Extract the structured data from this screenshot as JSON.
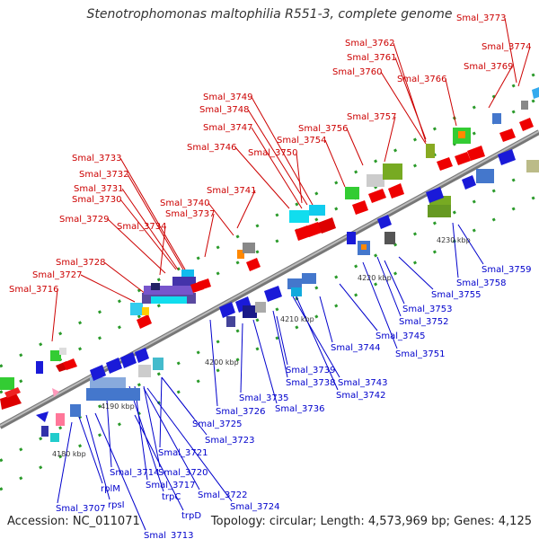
{
  "header": {
    "title": "Stenotrophomonas maltophilia R551-3, complete genome"
  },
  "footer": {
    "accession": "Accession: NC_011071",
    "summary": "Topology: circular; Length: 4,573,969 bp; Genes: 4,125"
  },
  "map": {
    "ticks": [
      "4180 kbp",
      "4190 kbp",
      "4200 kbp",
      "4210 kbp",
      "4220 kbp",
      "4230 kbp"
    ],
    "forward_labels": [
      "Smal_3773",
      "Smal_3774",
      "Smal_3762",
      "Smal_3761",
      "Smal_3760",
      "Smal_3766",
      "Smal_3769",
      "Smal_3749",
      "Smal_3748",
      "Smal_3757",
      "Smal_3747",
      "Smal_3756",
      "Smal_3754",
      "Smal_3746",
      "Smal_3750",
      "Smal_3733",
      "Smal_3732",
      "Smal_3741",
      "Smal_3731",
      "Smal_3740",
      "Smal_3730",
      "Smal_3737",
      "Smal_3729",
      "Smal_3734",
      "Smal_3728",
      "Smal_3727",
      "Smal_3716"
    ],
    "reverse_labels": [
      "Smal_3759",
      "Smal_3758",
      "Smal_3755",
      "Smal_3753",
      "Smal_3752",
      "Smal_3745",
      "Smal_3751",
      "Smal_3744",
      "Smal_3739",
      "Smal_3738",
      "Smal_3743",
      "Smal_3742",
      "Smal_3735",
      "Smal_3736",
      "Smal_3726",
      "Smal_3725",
      "Smal_3723",
      "Smal_3721",
      "Smal_3714",
      "Smal_3720",
      "Smal_3717",
      "trpC",
      "Smal_3722",
      "Smal_3724",
      "rplM",
      "rpsI",
      "Smal_3707",
      "trpD",
      "Smal_3713"
    ],
    "colors": {
      "forward_label": "#cc0000",
      "reverse_label": "#0000cc",
      "backbone": "#888888"
    }
  }
}
